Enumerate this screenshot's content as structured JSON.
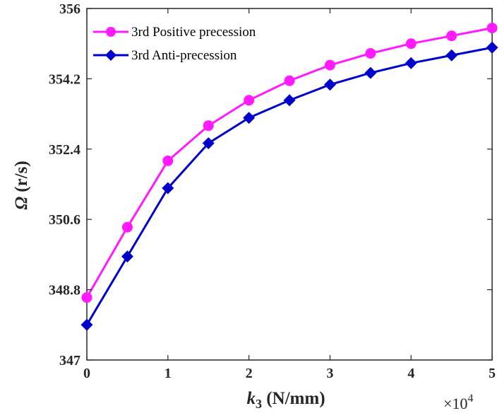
{
  "chart_data": {
    "type": "line",
    "x": [
      0,
      5000,
      10000,
      15000,
      20000,
      25000,
      30000,
      35000,
      40000,
      45000,
      50000
    ],
    "x_tick_labels": [
      "0",
      "1",
      "2",
      "3",
      "4",
      "5"
    ],
    "x_tick_values": [
      0,
      10000,
      20000,
      30000,
      40000,
      50000
    ],
    "x_exponent_label": "×10",
    "x_exponent_power": "4",
    "y_tick_labels": [
      "347",
      "348.8",
      "350.6",
      "352.4",
      "354.2",
      "356"
    ],
    "y_tick_values": [
      347,
      348.8,
      350.6,
      352.4,
      354.2,
      356
    ],
    "xlim": [
      0,
      50000
    ],
    "ylim": [
      347,
      356
    ],
    "xlabel_var": "k",
    "xlabel_sub": "3",
    "xlabel_unit": " (N/mm)",
    "ylabel_var": "Ω",
    "ylabel_unit": " (r/s)",
    "grid": false,
    "legend_position": "top-left",
    "series": [
      {
        "name": "3rd Positive precession",
        "color": "#ff1aff",
        "marker": "circle",
        "values": [
          348.6,
          350.4,
          352.1,
          353.0,
          353.65,
          354.15,
          354.55,
          354.85,
          355.1,
          355.3,
          355.5
        ]
      },
      {
        "name": "3rd Anti-precession",
        "color": "#0000cc",
        "marker": "diamond",
        "values": [
          347.9,
          349.65,
          351.4,
          352.55,
          353.2,
          353.65,
          354.05,
          354.35,
          354.6,
          354.8,
          355.0
        ]
      }
    ]
  }
}
